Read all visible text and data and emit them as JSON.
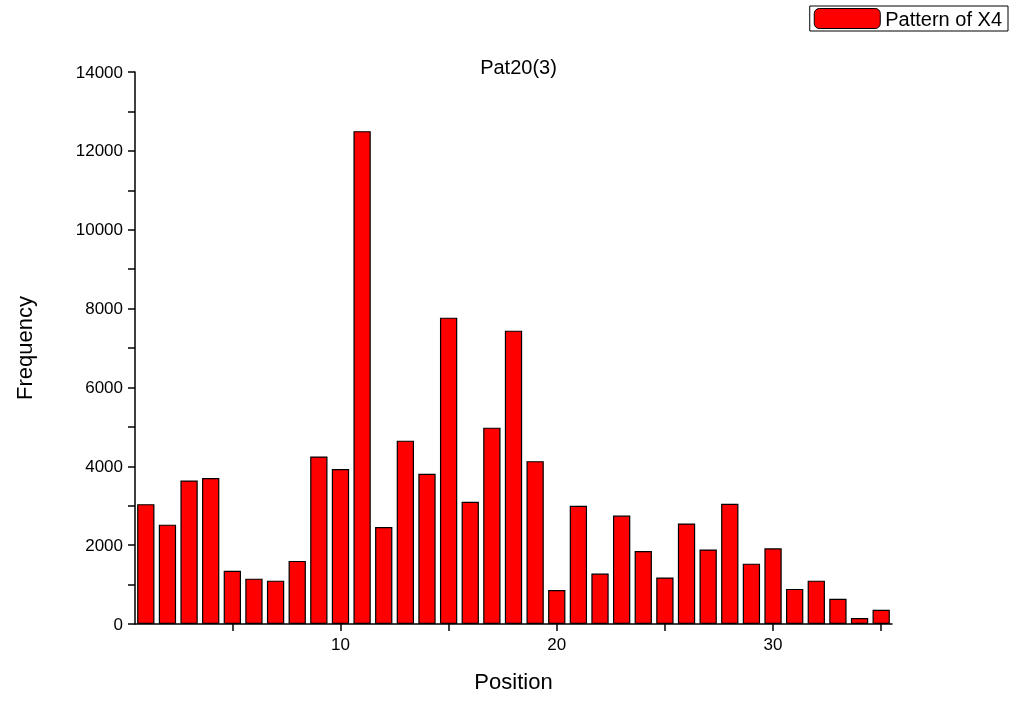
{
  "chart_data": {
    "type": "bar",
    "title": "Pat20(3)",
    "xlabel": "Position",
    "ylabel": "Frequency",
    "x": [
      1,
      2,
      3,
      4,
      5,
      6,
      7,
      8,
      9,
      10,
      11,
      12,
      13,
      14,
      15,
      16,
      17,
      18,
      19,
      20,
      21,
      22,
      23,
      24,
      25,
      26,
      27,
      28,
      29,
      30,
      31,
      32,
      33,
      34,
      35
    ],
    "series": [
      {
        "name": "Pattern of X4",
        "color": "#ff0000",
        "values": [
          3040,
          2520,
          3640,
          3700,
          1350,
          1150,
          1100,
          1600,
          4250,
          3930,
          12500,
          2460,
          4650,
          3810,
          7770,
          3100,
          4980,
          7440,
          4130,
          860,
          3000,
          1280,
          2750,
          1850,
          1180,
          2550,
          1890,
          3050,
          1530,
          1920,
          890,
          1100,
          640,
          150,
          360
        ]
      }
    ],
    "xlim": [
      0.5,
      35.5
    ],
    "xticks": [
      {
        "value": 5,
        "label": null
      },
      10,
      {
        "value": 15,
        "label": null
      },
      20,
      {
        "value": 25,
        "label": null
      },
      30,
      {
        "value": 35,
        "label": null
      }
    ],
    "ylim": [
      0,
      14000
    ],
    "yticks": [
      0,
      {
        "value": 1000,
        "label": null
      },
      2000,
      {
        "value": 3000,
        "label": null
      },
      4000,
      {
        "value": 5000,
        "label": null
      },
      6000,
      {
        "value": 7000,
        "label": null
      },
      8000,
      {
        "value": 9000,
        "label": null
      },
      10000,
      {
        "value": 11000,
        "label": null
      },
      12000,
      {
        "value": 13000,
        "label": null
      },
      14000
    ],
    "grid": false,
    "legend": "top right"
  }
}
